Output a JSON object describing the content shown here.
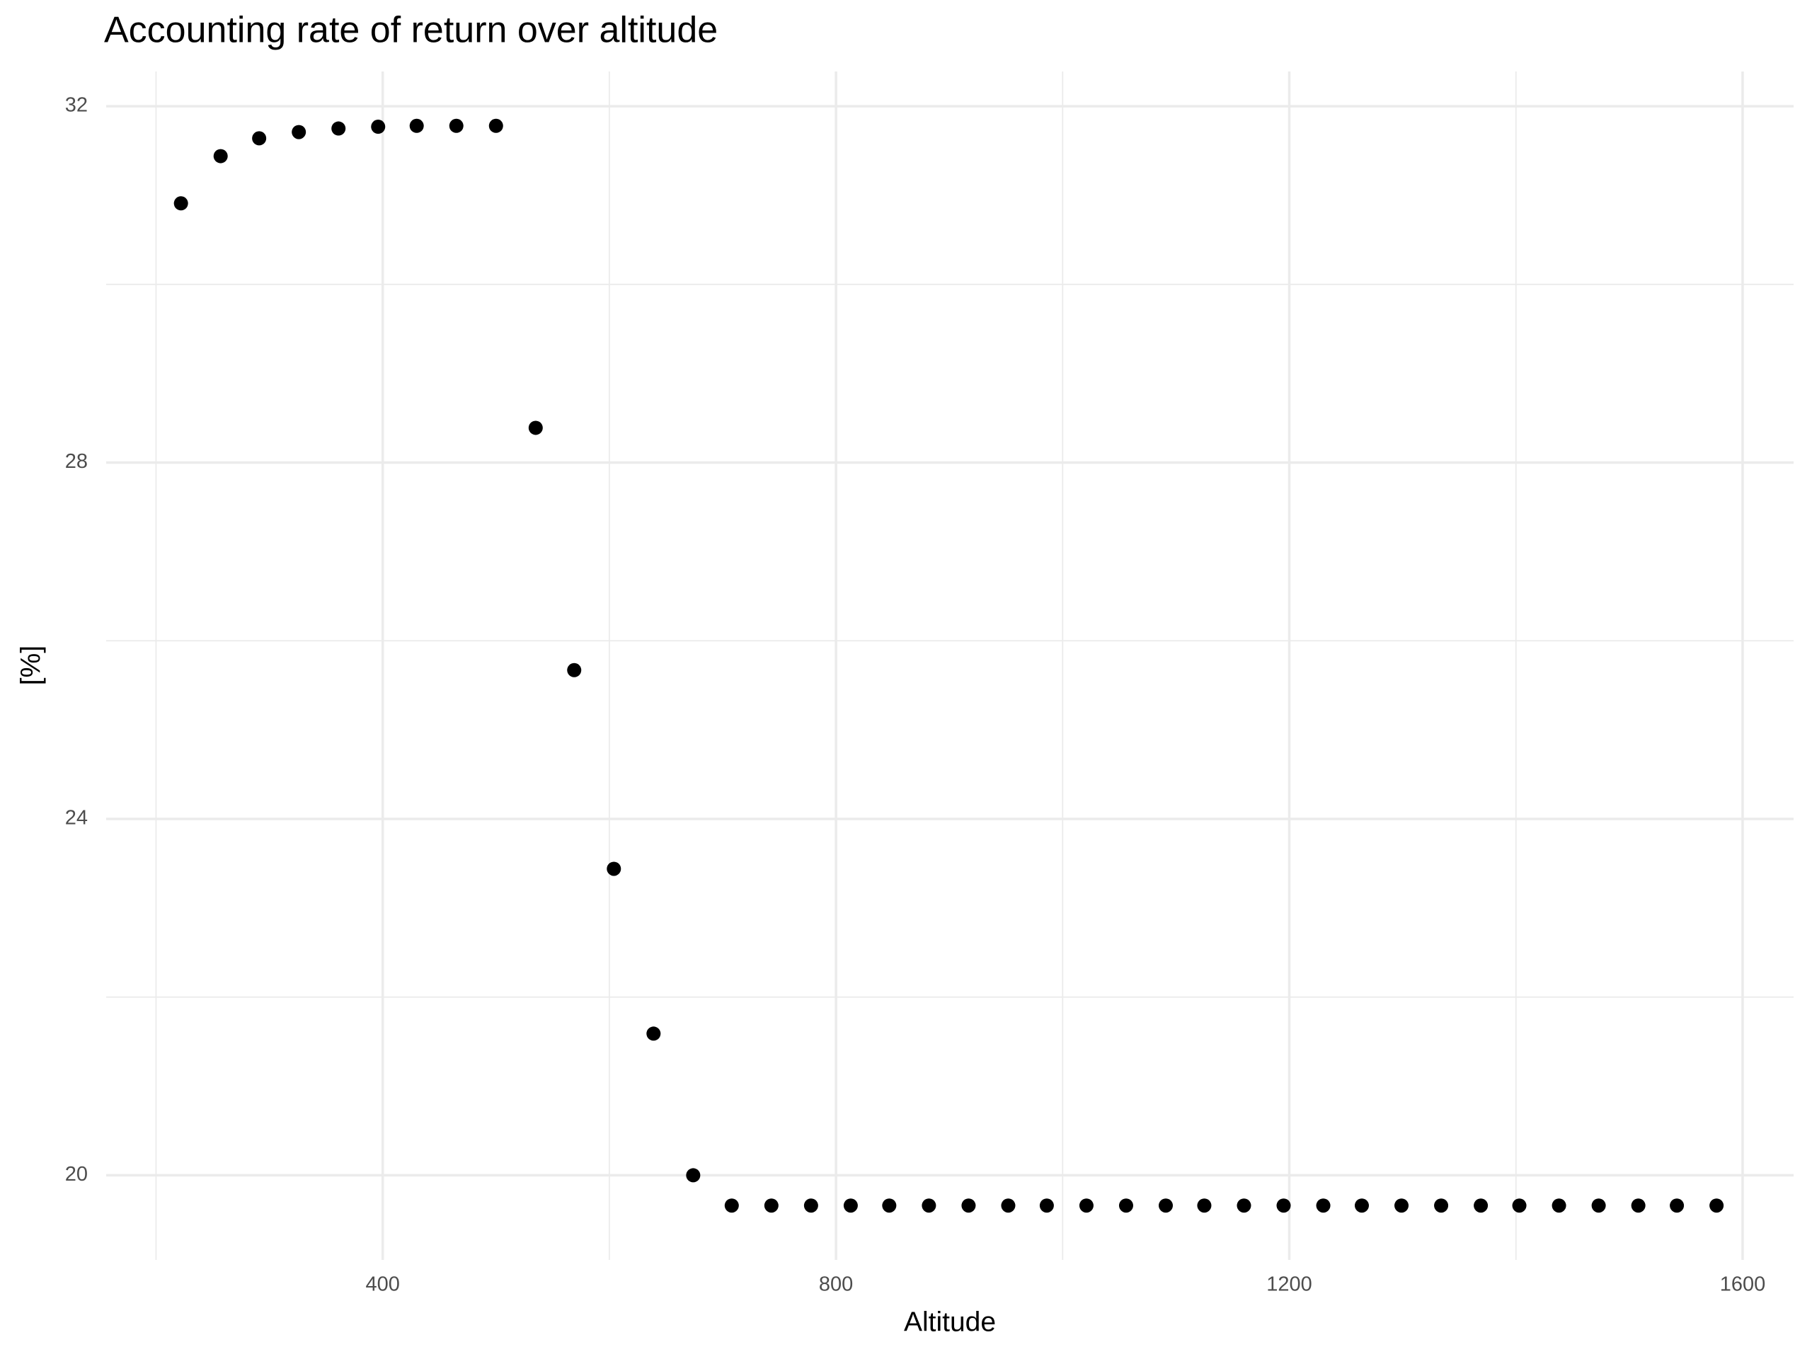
{
  "chart_data": {
    "type": "scatter",
    "title": "Accounting rate of return over altitude",
    "x_label": "Altitude",
    "y_label": "[%]",
    "color": "#000000",
    "grid": true,
    "x": [
      222,
      257,
      291,
      326,
      361,
      396,
      430,
      465,
      500,
      535,
      569,
      604,
      639,
      674,
      708,
      743,
      778,
      813,
      847,
      882,
      917,
      952,
      986,
      1021,
      1056,
      1091,
      1125,
      1160,
      1195,
      1230,
      1264,
      1299,
      1334,
      1369,
      1403,
      1438,
      1473,
      1508,
      1542,
      1577
    ],
    "values": [
      30.91,
      31.44,
      31.64,
      31.71,
      31.75,
      31.77,
      31.78,
      31.78,
      31.78,
      28.39,
      25.67,
      23.44,
      21.59,
      20.0,
      19.66,
      19.66,
      19.66,
      19.66,
      19.66,
      19.66,
      19.66,
      19.66,
      19.66,
      19.66,
      19.66,
      19.66,
      19.66,
      19.66,
      19.66,
      19.66,
      19.66,
      19.66,
      19.66,
      19.66,
      19.66,
      19.66,
      19.66,
      19.66,
      19.66,
      19.66
    ],
    "xlim": [
      156,
      1645
    ],
    "ylim": [
      19.05,
      32.39
    ],
    "xticks": [
      400,
      800,
      1200,
      1600
    ],
    "yticks": [
      20,
      24,
      28,
      32
    ],
    "xminorticks": [
      200,
      600,
      1000,
      1400
    ],
    "yminorticks": [
      22,
      26,
      30
    ]
  }
}
